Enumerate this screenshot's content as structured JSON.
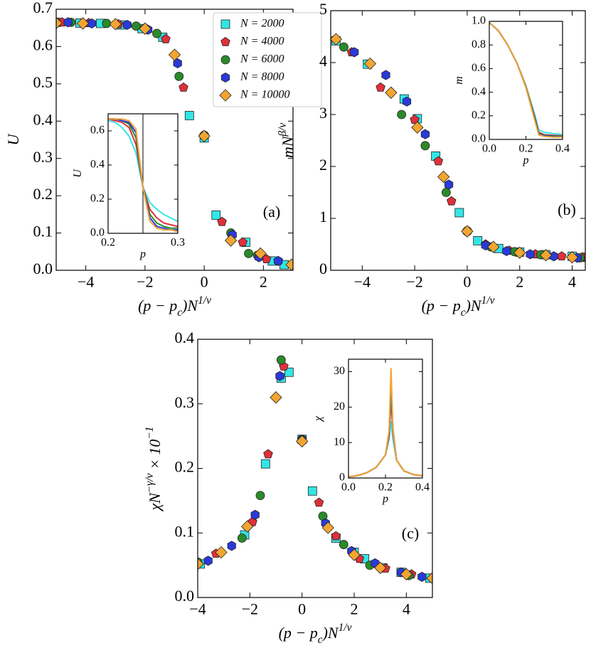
{
  "chart_data": [
    {
      "type": "scatter",
      "xlim": [
        -5,
        3
      ],
      "ylim": [
        0,
        0.7
      ],
      "xticks": [
        {
          "value": -4,
          "label": "−4"
        },
        {
          "value": -2,
          "label": "−2"
        },
        0,
        2
      ],
      "yticks": [
        {
          "value": 0,
          "label": "0.0"
        },
        0.1,
        0.2,
        0.3,
        0.4,
        0.5,
        0.6,
        0.7
      ],
      "x_label": [
        {
          "text": "(p − p"
        },
        {
          "text": "c",
          "script": "sub"
        },
        {
          "text": ")N"
        },
        {
          "text": "1/ν",
          "script": "sup"
        }
      ],
      "y_label": [
        {
          "text": "U"
        }
      ],
      "annotation": "(a)",
      "legend": "upper right",
      "series": [
        {
          "name": "N = 2000",
          "color": "#33e6e6",
          "marker": "square",
          "x": [
            -5,
            -4.2,
            -3.5,
            -2.8,
            -2.1,
            -1.4,
            -0.5,
            0,
            0.4,
            1.4,
            2.3,
            2.7
          ],
          "values": [
            0.665,
            0.663,
            0.662,
            0.658,
            0.648,
            0.625,
            0.415,
            0.355,
            0.148,
            0.075,
            0.025,
            0.015
          ]
        },
        {
          "name": "N = 4000",
          "color": "#e0303a",
          "marker": "pentagon",
          "x": [
            -4.8,
            -3.9,
            -2.9,
            -2,
            -1.3,
            -0.7,
            0,
            0.6,
            1.3,
            2.1,
            2.5
          ],
          "values": [
            0.665,
            0.663,
            0.66,
            0.65,
            0.62,
            0.49,
            0.362,
            0.13,
            0.075,
            0.03,
            0.025
          ]
        },
        {
          "name": "N = 6000",
          "color": "#2a8a2a",
          "marker": "circle",
          "x": [
            -5,
            -4.5,
            -3.3,
            -2.3,
            -1.6,
            -0.85,
            0,
            0.9,
            1.5,
            1.8
          ],
          "values": [
            0.665,
            0.665,
            0.662,
            0.655,
            0.635,
            0.52,
            0.362,
            0.1,
            0.045,
            0.04
          ]
        },
        {
          "name": "N = 8000",
          "color": "#2a3ad8",
          "marker": "hexagon",
          "x": [
            -4.6,
            -3.8,
            -2.6,
            -1.9,
            -0.9,
            0,
            0.95,
            1.85,
            2.5
          ],
          "values": [
            0.665,
            0.662,
            0.658,
            0.645,
            0.555,
            0.36,
            0.095,
            0.035,
            0.025
          ]
        },
        {
          "name": "N = 10000",
          "color": "#f2a531",
          "marker": "diamond",
          "x": [
            -5,
            -4.1,
            -3,
            -2,
            -1,
            0,
            0.9,
            1.9,
            2.95
          ],
          "values": [
            0.663,
            0.662,
            0.66,
            0.648,
            0.578,
            0.36,
            0.08,
            0.045,
            0.015
          ]
        }
      ]
    },
    {
      "type": "line",
      "xlim": [
        0.2,
        0.3
      ],
      "ylim": [
        0,
        0.7
      ],
      "xticks": [
        0.2,
        0.3
      ],
      "yticks": [
        {
          "value": 0,
          "label": "0.0"
        },
        0.2,
        0.4,
        0.6
      ],
      "x_label": [
        {
          "text": "p"
        }
      ],
      "y_label": [
        {
          "text": "U"
        }
      ],
      "vlines": [
        0.25
      ],
      "x": [
        0.2,
        0.21,
        0.22,
        0.23,
        0.24,
        0.25,
        0.26,
        0.27,
        0.28,
        0.29,
        0.3
      ],
      "series": [
        {
          "color": "#33e6e6",
          "values": [
            0.66,
            0.65,
            0.62,
            0.57,
            0.47,
            0.27,
            0.18,
            0.14,
            0.11,
            0.09,
            0.07
          ]
        },
        {
          "color": "#e0303a",
          "values": [
            0.67,
            0.66,
            0.65,
            0.62,
            0.52,
            0.27,
            0.14,
            0.09,
            0.06,
            0.05,
            0.04
          ]
        },
        {
          "color": "#2a8a2a",
          "values": [
            0.67,
            0.67,
            0.66,
            0.64,
            0.56,
            0.27,
            0.11,
            0.06,
            0.04,
            0.03,
            0.03
          ]
        },
        {
          "color": "#2a3ad8",
          "values": [
            0.67,
            0.67,
            0.66,
            0.65,
            0.59,
            0.27,
            0.09,
            0.04,
            0.03,
            0.02,
            0.02
          ]
        },
        {
          "color": "#f2a531",
          "values": [
            0.67,
            0.67,
            0.67,
            0.66,
            0.61,
            0.27,
            0.07,
            0.03,
            0.02,
            0.02,
            0.01
          ]
        }
      ]
    },
    {
      "type": "scatter",
      "xlim": [
        -5.2,
        4.5
      ],
      "ylim": [
        0,
        5
      ],
      "xticks": [
        {
          "value": -4,
          "label": "−4"
        },
        {
          "value": -2,
          "label": "−2"
        },
        0,
        2,
        4
      ],
      "yticks": [
        0,
        1,
        2,
        3,
        4,
        5
      ],
      "x_label": [
        {
          "text": "(p − p"
        },
        {
          "text": "c",
          "script": "sub"
        },
        {
          "text": ")N"
        },
        {
          "text": "1/ν",
          "script": "sup"
        }
      ],
      "y_label": [
        {
          "text": "mN"
        },
        {
          "text": "β/ν",
          "script": "sup"
        }
      ],
      "annotation": "(b)",
      "series": [
        {
          "color": "#33e6e6",
          "marker": "square",
          "x": [
            -5,
            -3.8,
            -2.4,
            -1.9,
            -1.2,
            -0.3,
            0.4,
            1.2,
            2,
            3,
            4,
            4.5
          ],
          "values": [
            4.42,
            3.97,
            3.3,
            2.92,
            2.2,
            1.11,
            0.57,
            0.42,
            0.35,
            0.3,
            0.27,
            0.25
          ]
        },
        {
          "color": "#e0303a",
          "marker": "pentagon",
          "x": [
            -4.4,
            -3.3,
            -2,
            -1.1,
            -0.6,
            0,
            0.7,
            1.6,
            2.6,
            3.6,
            4.4
          ],
          "values": [
            4.2,
            3.52,
            2.9,
            2.1,
            1.33,
            0.75,
            0.5,
            0.38,
            0.31,
            0.27,
            0.25
          ]
        },
        {
          "color": "#2a8a2a",
          "marker": "circle",
          "x": [
            -4.7,
            -2.5,
            -1.6,
            -0.8,
            0,
            0.9,
            1.8,
            2.8,
            4.3
          ],
          "values": [
            4.3,
            3,
            2.4,
            1.5,
            0.76,
            0.45,
            0.36,
            0.3,
            0.24
          ]
        },
        {
          "color": "#2a3ad8",
          "marker": "hexagon",
          "x": [
            -4.3,
            -3.1,
            -2.3,
            -1.6,
            -0.7,
            0,
            0.7,
            1.5,
            2.4,
            3.3,
            4.2
          ],
          "values": [
            4.2,
            3.76,
            3.25,
            2.62,
            1.65,
            0.75,
            0.48,
            0.37,
            0.31,
            0.27,
            0.24
          ]
        },
        {
          "color": "#f2a531",
          "marker": "diamond",
          "x": [
            -5,
            -3.7,
            -2.9,
            -1.9,
            -0.9,
            0,
            1,
            2,
            3,
            4
          ],
          "values": [
            4.45,
            3.98,
            3.42,
            2.75,
            1.8,
            0.75,
            0.45,
            0.34,
            0.29,
            0.25
          ]
        }
      ]
    },
    {
      "type": "line",
      "xlim": [
        0,
        0.4
      ],
      "ylim": [
        0,
        1
      ],
      "xticks": [
        {
          "value": 0,
          "label": "0.0"
        },
        0.2,
        0.4
      ],
      "yticks": [
        {
          "value": 0,
          "label": "0.0"
        },
        0.2,
        0.4,
        0.6,
        0.8,
        {
          "value": 1,
          "label": "1.0"
        }
      ],
      "x_label": [
        {
          "text": "p"
        }
      ],
      "y_label": [
        {
          "text": "m"
        }
      ],
      "x": [
        0,
        0.05,
        0.1,
        0.15,
        0.2,
        0.25,
        0.27,
        0.3,
        0.35,
        0.4
      ],
      "series": [
        {
          "color": "#33e6e6",
          "values": [
            0.99,
            0.92,
            0.8,
            0.65,
            0.45,
            0.2,
            0.08,
            0.06,
            0.05,
            0.04
          ]
        },
        {
          "color": "#e0303a",
          "values": [
            0.99,
            0.92,
            0.8,
            0.65,
            0.45,
            0.18,
            0.06,
            0.04,
            0.035,
            0.03
          ]
        },
        {
          "color": "#2a8a2a",
          "values": [
            0.99,
            0.92,
            0.8,
            0.65,
            0.45,
            0.17,
            0.05,
            0.035,
            0.03,
            0.025
          ]
        },
        {
          "color": "#2a3ad8",
          "values": [
            0.99,
            0.92,
            0.8,
            0.65,
            0.44,
            0.16,
            0.045,
            0.03,
            0.025,
            0.02
          ]
        },
        {
          "color": "#f2a531",
          "values": [
            0.99,
            0.92,
            0.8,
            0.65,
            0.44,
            0.15,
            0.04,
            0.025,
            0.02,
            0.02
          ]
        }
      ]
    },
    {
      "type": "scatter",
      "xlim": [
        -4,
        5
      ],
      "ylim": [
        0,
        0.4
      ],
      "xticks": [
        {
          "value": -4,
          "label": "−4"
        },
        {
          "value": -2,
          "label": "−2"
        },
        0,
        2,
        4
      ],
      "yticks": [
        {
          "value": 0,
          "label": "0.0"
        },
        0.1,
        0.2,
        0.3,
        0.4
      ],
      "x_label": [
        {
          "text": "(p − p"
        },
        {
          "text": "c",
          "script": "sub"
        },
        {
          "text": ")N"
        },
        {
          "text": "1/ν",
          "script": "sup"
        }
      ],
      "y_label": [
        {
          "text": "χN"
        },
        {
          "text": "−γ/ν",
          "script": "sup"
        },
        {
          "text": " × 10"
        },
        {
          "text": "−1",
          "script": "sup"
        }
      ],
      "annotation": "(c)",
      "series": [
        {
          "color": "#33e6e6",
          "marker": "square",
          "x": [
            -3.9,
            -2.2,
            -1.4,
            -0.8,
            -0.5,
            0,
            0.4,
            1.3,
            2,
            2.4,
            3.1,
            3.8,
            4.9
          ],
          "values": [
            0.052,
            0.097,
            0.207,
            0.34,
            0.349,
            0.245,
            0.165,
            0.092,
            0.07,
            0.06,
            0.046,
            0.039,
            0.03
          ]
        },
        {
          "color": "#e0303a",
          "marker": "pentagon",
          "x": [
            -3.3,
            -1.9,
            -1.3,
            -0.7,
            0,
            0.65,
            1.3,
            2.2,
            3.2,
            4.2
          ],
          "values": [
            0.068,
            0.117,
            0.222,
            0.358,
            0.244,
            0.147,
            0.095,
            0.06,
            0.045,
            0.036
          ]
        },
        {
          "color": "#2a8a2a",
          "marker": "circle",
          "x": [
            -4,
            -2.3,
            -1.6,
            -0.8,
            0,
            0.8,
            1.6,
            2.6,
            4.1
          ],
          "values": [
            0.055,
            0.092,
            0.158,
            0.368,
            0.245,
            0.126,
            0.082,
            0.05,
            0.034
          ]
        },
        {
          "color": "#2a3ad8",
          "marker": "hexagon",
          "x": [
            -3.6,
            -2.7,
            -1.8,
            -0.85,
            0,
            0.9,
            1.9,
            2.8,
            3.8,
            4.6
          ],
          "values": [
            0.057,
            0.08,
            0.128,
            0.343,
            0.244,
            0.115,
            0.072,
            0.053,
            0.039,
            0.032
          ]
        },
        {
          "color": "#f2a531",
          "marker": "diamond",
          "x": [
            -4,
            -3.1,
            -2.1,
            -1,
            0,
            1,
            2,
            3,
            4,
            5
          ],
          "values": [
            0.052,
            0.07,
            0.11,
            0.31,
            0.242,
            0.108,
            0.066,
            0.046,
            0.036,
            0.03
          ]
        }
      ]
    },
    {
      "type": "line",
      "xlim": [
        0,
        0.4
      ],
      "ylim": [
        0,
        33.5
      ],
      "xticks": [
        {
          "value": 0,
          "label": "0.0"
        },
        0.2,
        0.4
      ],
      "yticks": [
        0,
        10,
        20,
        30
      ],
      "x_label": [
        {
          "text": "p"
        }
      ],
      "y_label": [
        {
          "text": "χ"
        }
      ],
      "x": [
        0,
        0.05,
        0.1,
        0.15,
        0.2,
        0.22,
        0.23,
        0.24,
        0.26,
        0.3,
        0.35,
        0.4
      ],
      "series": [
        {
          "color": "#33e6e6",
          "values": [
            0.3,
            0.7,
            1.5,
            3,
            6.5,
            11,
            16,
            11,
            5,
            2,
            1,
            0.6
          ]
        },
        {
          "color": "#e0303a",
          "values": [
            0.3,
            0.7,
            1.5,
            3,
            6.5,
            12,
            22,
            13,
            5,
            2,
            1,
            0.6
          ]
        },
        {
          "color": "#2a8a2a",
          "values": [
            0.3,
            0.7,
            1.5,
            3,
            6.5,
            13,
            25,
            14,
            5,
            2,
            1,
            0.6
          ]
        },
        {
          "color": "#2a3ad8",
          "values": [
            0.3,
            0.7,
            1.5,
            3,
            6.5,
            13,
            28,
            14,
            5,
            2,
            1,
            0.6
          ]
        },
        {
          "color": "#f2a531",
          "values": [
            0.3,
            0.7,
            1.5,
            3,
            6.5,
            13.5,
            31,
            14,
            5,
            2,
            1,
            0.6
          ]
        }
      ]
    }
  ]
}
